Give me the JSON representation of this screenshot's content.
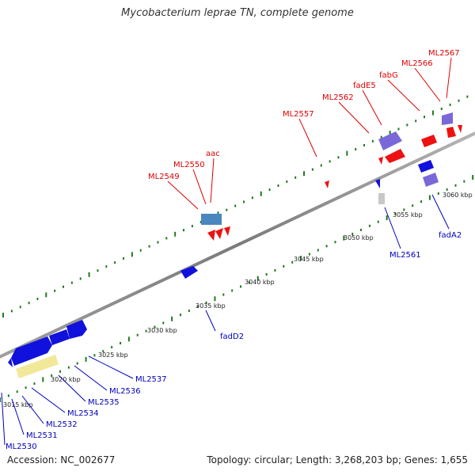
{
  "title": "Mycobacterium leprae TN, complete genome",
  "footer": {
    "accession": "Accession: NC_002677",
    "summary": "Topology: circular; Length: 3,268,203 bp; Genes: 1,655"
  },
  "colors": {
    "backbone": "#8c8c8c",
    "tick": "#1e7a1e",
    "forward_label": "#dd0000",
    "reverse_label": "#0000bb",
    "gene_red": "#ee1111",
    "gene_blue": "#1111dd",
    "gene_violet": "#7b68d8",
    "gene_steel": "#4a86bf",
    "gene_yellow": "#f2e89a",
    "gene_grey": "#c8c8c8"
  },
  "scale": {
    "unit": "kbp",
    "ticks": [
      "3015 kbp",
      "3020 kbp",
      "3025 kbp",
      "3030 kbp",
      "3035 kbp",
      "3040 kbp",
      "3045 kbp",
      "3050 kbp",
      "3055 kbp",
      "3060 kbp"
    ]
  },
  "forward_labels": [
    "ML2549",
    "ML2550",
    "aac",
    "ML2557",
    "ML2562",
    "fadE5",
    "fabG",
    "ML2566",
    "ML2567"
  ],
  "reverse_labels": [
    "fadA2",
    "ML2561",
    "fadD2",
    "ML2537",
    "ML2536",
    "ML2535",
    "ML2534",
    "ML2532",
    "ML2531",
    "ML2530"
  ],
  "gene_icons": [
    "red-arrow",
    "blue-arrow",
    "violet-box",
    "steel-box",
    "yellow-box",
    "grey-box"
  ]
}
